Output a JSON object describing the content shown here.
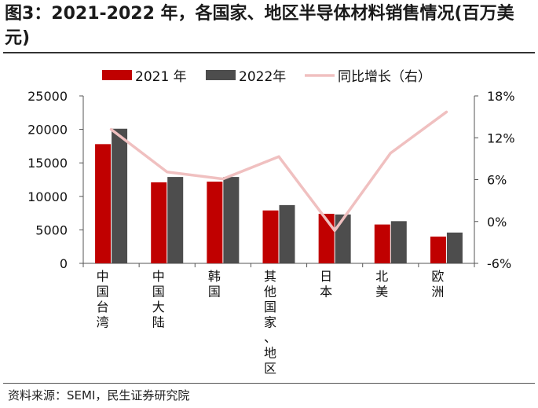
{
  "figure": {
    "title": "图3：2021-2022 年，各国家、地区半导体材料销售情况(百万美元)",
    "source": "资料来源：SEMI，民生证券研究院"
  },
  "colors": {
    "s2021": "#c00000",
    "s2022": "#4d4d4d",
    "growth": "#f0c0c0",
    "axis": "#555555"
  },
  "chart_data": {
    "type": "bar",
    "title": "2021-2022 年，各国家、地区半导体材料销售情况(百万美元)",
    "categories": [
      "中国台湾",
      "中国大陆",
      "韩国",
      "其他国家、地区",
      "日本",
      "北美",
      "欧洲"
    ],
    "series": [
      {
        "name": "2021 年",
        "type": "bar",
        "axis": "left",
        "values": [
          17800,
          12100,
          12200,
          7900,
          7400,
          5800,
          4000
        ]
      },
      {
        "name": "2022年",
        "type": "bar",
        "axis": "left",
        "values": [
          20100,
          12900,
          12900,
          8700,
          7300,
          6300,
          4600
        ]
      },
      {
        "name": "同比增长（右）",
        "type": "line",
        "axis": "right",
        "unit": "%",
        "values": [
          13.2,
          7.1,
          6.1,
          9.3,
          -1.3,
          9.8,
          15.7
        ]
      }
    ],
    "y_left": {
      "lim": [
        0,
        25000
      ],
      "ticks": [
        "0",
        "5000",
        "10000",
        "15000",
        "20000",
        "25000"
      ]
    },
    "y_right": {
      "lim": [
        -6,
        18
      ],
      "ticks": [
        "-6%",
        "0%",
        "6%",
        "12%",
        "18%"
      ]
    },
    "legend": "top",
    "grid": false
  }
}
